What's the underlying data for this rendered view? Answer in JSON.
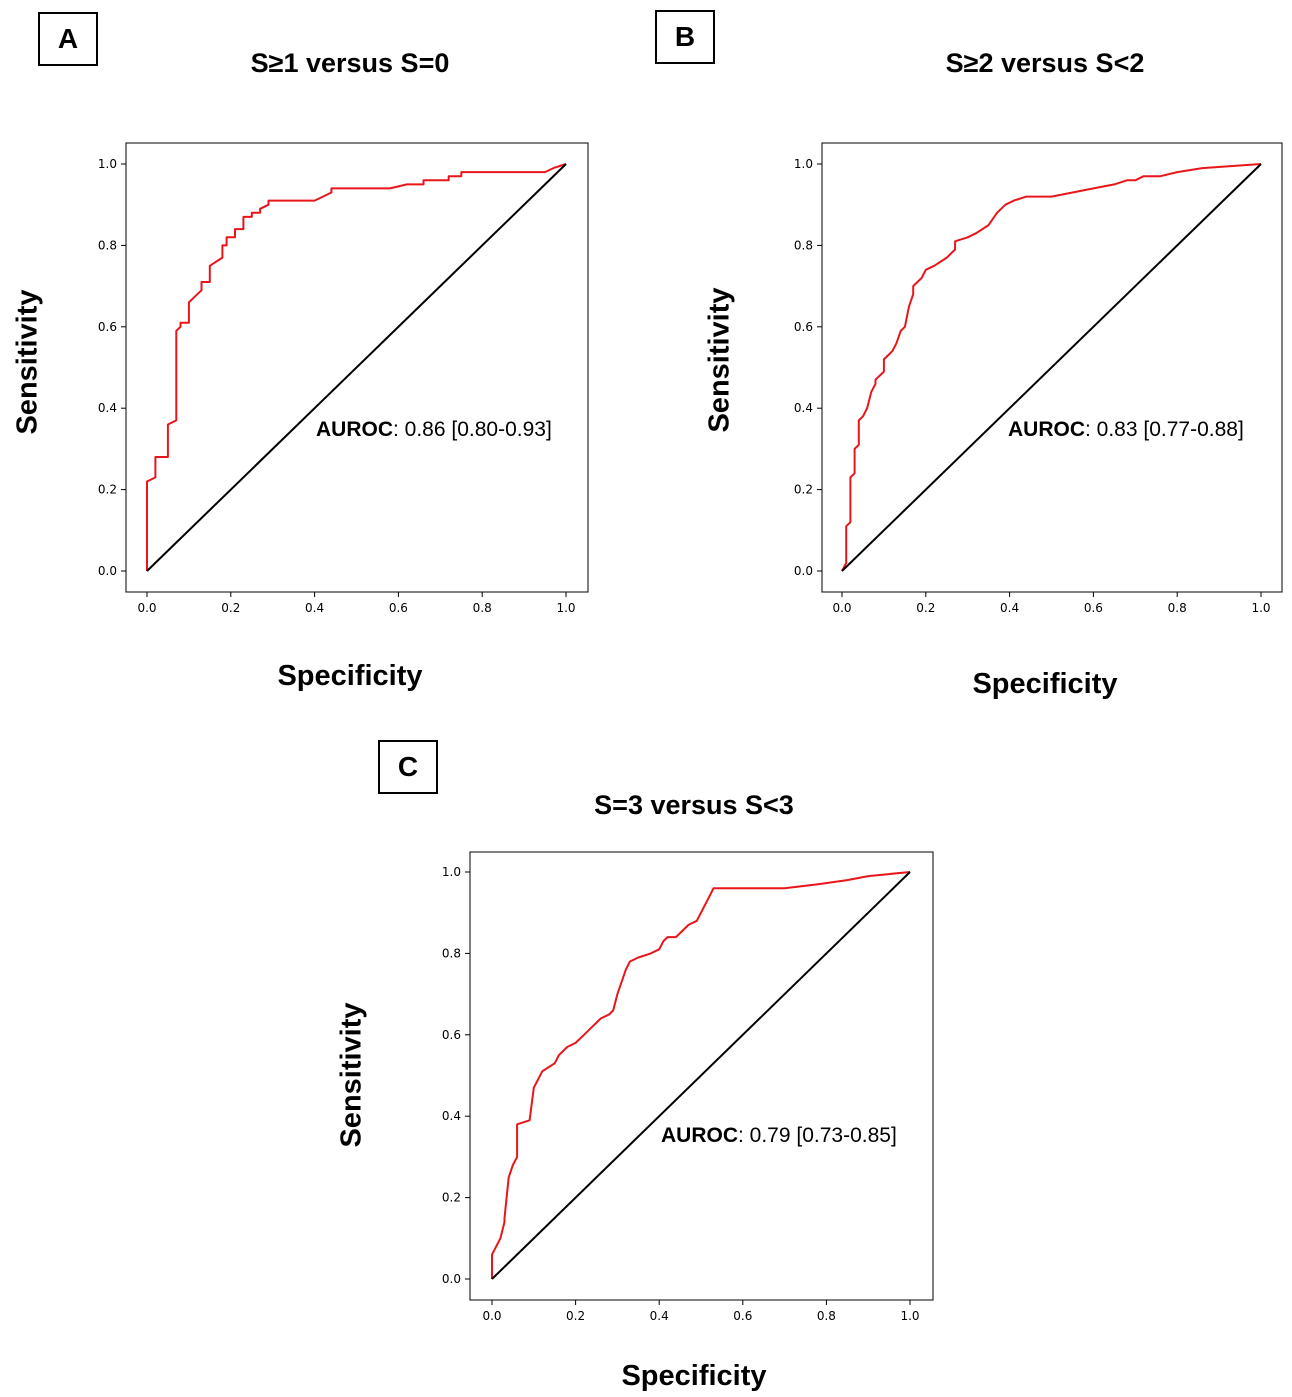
{
  "chart_data": [
    {
      "type": "line",
      "panel_label": "A",
      "title": "S≥1 versus S=0",
      "xlabel": "Specificity",
      "ylabel": "Sensitivity",
      "xlim": [
        0,
        1
      ],
      "ylim": [
        0,
        1
      ],
      "xticks": [
        "0.0",
        "0.2",
        "0.4",
        "0.6",
        "0.8",
        "1.0"
      ],
      "yticks": [
        "0.0",
        "0.2",
        "0.4",
        "0.6",
        "0.8",
        "1.0"
      ],
      "grid": false,
      "annotation": {
        "label": "AUROC",
        "text": ": 0.86 [0.80-0.93]"
      },
      "series": [
        {
          "color": "#e8161b",
          "x": [
            0,
            0,
            0.02,
            0.02,
            0.05,
            0.05,
            0.07,
            0.07,
            0.08,
            0.08,
            0.1,
            0.1,
            0.11,
            0.11,
            0.13,
            0.13,
            0.15,
            0.15,
            0.18,
            0.18,
            0.19,
            0.19,
            0.21,
            0.21,
            0.23,
            0.23,
            0.25,
            0.25,
            0.27,
            0.27,
            0.29,
            0.29,
            0.32,
            0.4,
            0.42,
            0.44,
            0.44,
            0.5,
            0.58,
            0.62,
            0.63,
            0.66,
            0.66,
            0.7,
            0.72,
            0.72,
            0.75,
            0.75,
            0.8,
            0.95,
            0.97,
            1.0
          ],
          "y": [
            0,
            0.22,
            0.23,
            0.28,
            0.28,
            0.36,
            0.37,
            0.59,
            0.6,
            0.61,
            0.61,
            0.66,
            0.67,
            0.67,
            0.69,
            0.71,
            0.71,
            0.75,
            0.77,
            0.8,
            0.8,
            0.82,
            0.82,
            0.84,
            0.84,
            0.87,
            0.87,
            0.88,
            0.88,
            0.89,
            0.9,
            0.91,
            0.91,
            0.91,
            0.92,
            0.93,
            0.94,
            0.94,
            0.94,
            0.95,
            0.95,
            0.95,
            0.96,
            0.96,
            0.96,
            0.97,
            0.97,
            0.98,
            0.98,
            0.98,
            0.99,
            1.0
          ]
        },
        {
          "color": "#000000",
          "x": [
            0,
            1
          ],
          "y": [
            0,
            1
          ]
        }
      ]
    },
    {
      "type": "line",
      "panel_label": "B",
      "title": "S≥2 versus S<2",
      "xlabel": "Specificity",
      "ylabel": "Sensitivity",
      "xlim": [
        0,
        1
      ],
      "ylim": [
        0,
        1
      ],
      "xticks": [
        "0.0",
        "0.2",
        "0.4",
        "0.6",
        "0.8",
        "1.0"
      ],
      "yticks": [
        "0.0",
        "0.2",
        "0.4",
        "0.6",
        "0.8",
        "1.0"
      ],
      "grid": false,
      "annotation": {
        "label": "AUROC",
        "text": ": 0.83 [0.77-0.88]"
      },
      "series": [
        {
          "color": "#e8161b",
          "x": [
            0,
            0.01,
            0.01,
            0.02,
            0.02,
            0.03,
            0.03,
            0.04,
            0.04,
            0.05,
            0.05,
            0.06,
            0.07,
            0.08,
            0.08,
            0.1,
            0.1,
            0.12,
            0.13,
            0.14,
            0.15,
            0.16,
            0.17,
            0.17,
            0.19,
            0.2,
            0.22,
            0.25,
            0.27,
            0.27,
            0.3,
            0.32,
            0.35,
            0.37,
            0.39,
            0.41,
            0.44,
            0.5,
            0.55,
            0.6,
            0.65,
            0.68,
            0.7,
            0.72,
            0.76,
            0.8,
            0.86,
            1.0
          ],
          "y": [
            0,
            0.02,
            0.11,
            0.12,
            0.23,
            0.24,
            0.3,
            0.31,
            0.37,
            0.38,
            0.38,
            0.4,
            0.44,
            0.46,
            0.47,
            0.49,
            0.52,
            0.54,
            0.56,
            0.59,
            0.6,
            0.65,
            0.68,
            0.7,
            0.72,
            0.74,
            0.75,
            0.77,
            0.79,
            0.81,
            0.82,
            0.83,
            0.85,
            0.88,
            0.9,
            0.91,
            0.92,
            0.92,
            0.93,
            0.94,
            0.95,
            0.96,
            0.96,
            0.97,
            0.97,
            0.98,
            0.99,
            1.0
          ]
        },
        {
          "color": "#000000",
          "x": [
            0,
            1
          ],
          "y": [
            0,
            1
          ]
        }
      ]
    },
    {
      "type": "line",
      "panel_label": "C",
      "title": "S=3 versus S<3",
      "xlabel": "Specificity",
      "ylabel": "Sensitivity",
      "xlim": [
        0,
        1
      ],
      "ylim": [
        0,
        1
      ],
      "xticks": [
        "0.0",
        "0.2",
        "0.4",
        "0.6",
        "0.8",
        "1.0"
      ],
      "yticks": [
        "0.0",
        "0.2",
        "0.4",
        "0.6",
        "0.8",
        "1.0"
      ],
      "grid": false,
      "annotation": {
        "label": "AUROC",
        "text": ": 0.79 [0.73-0.85]"
      },
      "series": [
        {
          "color": "#e8161b",
          "x": [
            0,
            0.0,
            0.01,
            0.02,
            0.03,
            0.03,
            0.04,
            0.05,
            0.06,
            0.06,
            0.09,
            0.1,
            0.11,
            0.12,
            0.15,
            0.16,
            0.18,
            0.2,
            0.22,
            0.24,
            0.26,
            0.28,
            0.29,
            0.3,
            0.31,
            0.32,
            0.33,
            0.35,
            0.38,
            0.4,
            0.41,
            0.42,
            0.44,
            0.46,
            0.47,
            0.49,
            0.51,
            0.52,
            0.53,
            0.55,
            0.6,
            0.7,
            0.78,
            0.85,
            0.9,
            1.0
          ],
          "y": [
            0,
            0.06,
            0.08,
            0.1,
            0.14,
            0.15,
            0.25,
            0.28,
            0.3,
            0.38,
            0.39,
            0.47,
            0.49,
            0.51,
            0.53,
            0.55,
            0.57,
            0.58,
            0.6,
            0.62,
            0.64,
            0.65,
            0.66,
            0.7,
            0.73,
            0.76,
            0.78,
            0.79,
            0.8,
            0.81,
            0.83,
            0.84,
            0.84,
            0.86,
            0.87,
            0.88,
            0.92,
            0.94,
            0.96,
            0.96,
            0.96,
            0.96,
            0.97,
            0.98,
            0.99,
            1.0
          ]
        },
        {
          "color": "#000000",
          "x": [
            0,
            1
          ],
          "y": [
            0,
            1
          ]
        }
      ]
    }
  ]
}
